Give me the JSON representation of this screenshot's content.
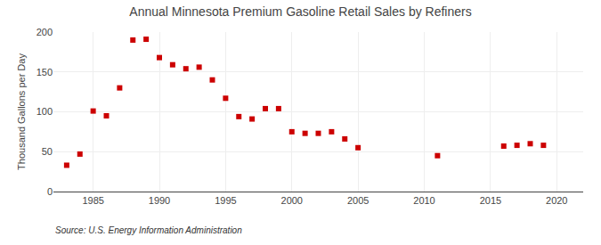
{
  "chart_data": {
    "type": "scatter",
    "title": "Annual Minnesota Premium Gasoline Retail Sales by Refiners",
    "ylabel": "Thousand Gallons per Day",
    "annotations": [
      "Source: U.S. Energy Information Administration"
    ],
    "x": [
      1983,
      1984,
      1985,
      1986,
      1987,
      1988,
      1989,
      1990,
      1991,
      1992,
      1993,
      1994,
      1995,
      1996,
      1997,
      1998,
      1999,
      2000,
      2001,
      2002,
      2003,
      2004,
      2005,
      2011,
      2016,
      2017,
      2018,
      2019
    ],
    "values": [
      33,
      47,
      101,
      95,
      130,
      190,
      191,
      168,
      159,
      154,
      156,
      140,
      117,
      94,
      91,
      104,
      104,
      75,
      73,
      73,
      75,
      66,
      55,
      45,
      57,
      58,
      60,
      58
    ],
    "color": "#cc0000",
    "marker": "square",
    "xlim": [
      1982,
      2022
    ],
    "ylim": [
      0,
      200
    ],
    "xticks": [
      1985,
      1990,
      1995,
      2000,
      2005,
      2010,
      2015,
      2020
    ],
    "yticks": [
      0,
      50,
      100,
      150,
      200
    ],
    "grid": true
  }
}
